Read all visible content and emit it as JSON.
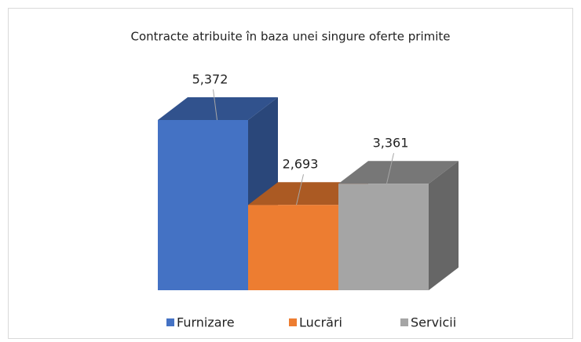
{
  "chart_data": {
    "type": "bar3d",
    "title": "Contracte atribuite în baza unei singure oferte primite",
    "series": [
      {
        "name": "Furnizare",
        "color": "#4472c4",
        "values": [
          5372
        ],
        "value_labels": [
          "5,372"
        ]
      },
      {
        "name": "Lucrări",
        "color": "#ed7d31",
        "values": [
          2693
        ],
        "value_labels": [
          "2,693"
        ]
      },
      {
        "name": "Servicii",
        "color": "#a5a5a5",
        "values": [
          3361
        ],
        "value_labels": [
          "3,361"
        ]
      }
    ],
    "legend": "bottom"
  }
}
